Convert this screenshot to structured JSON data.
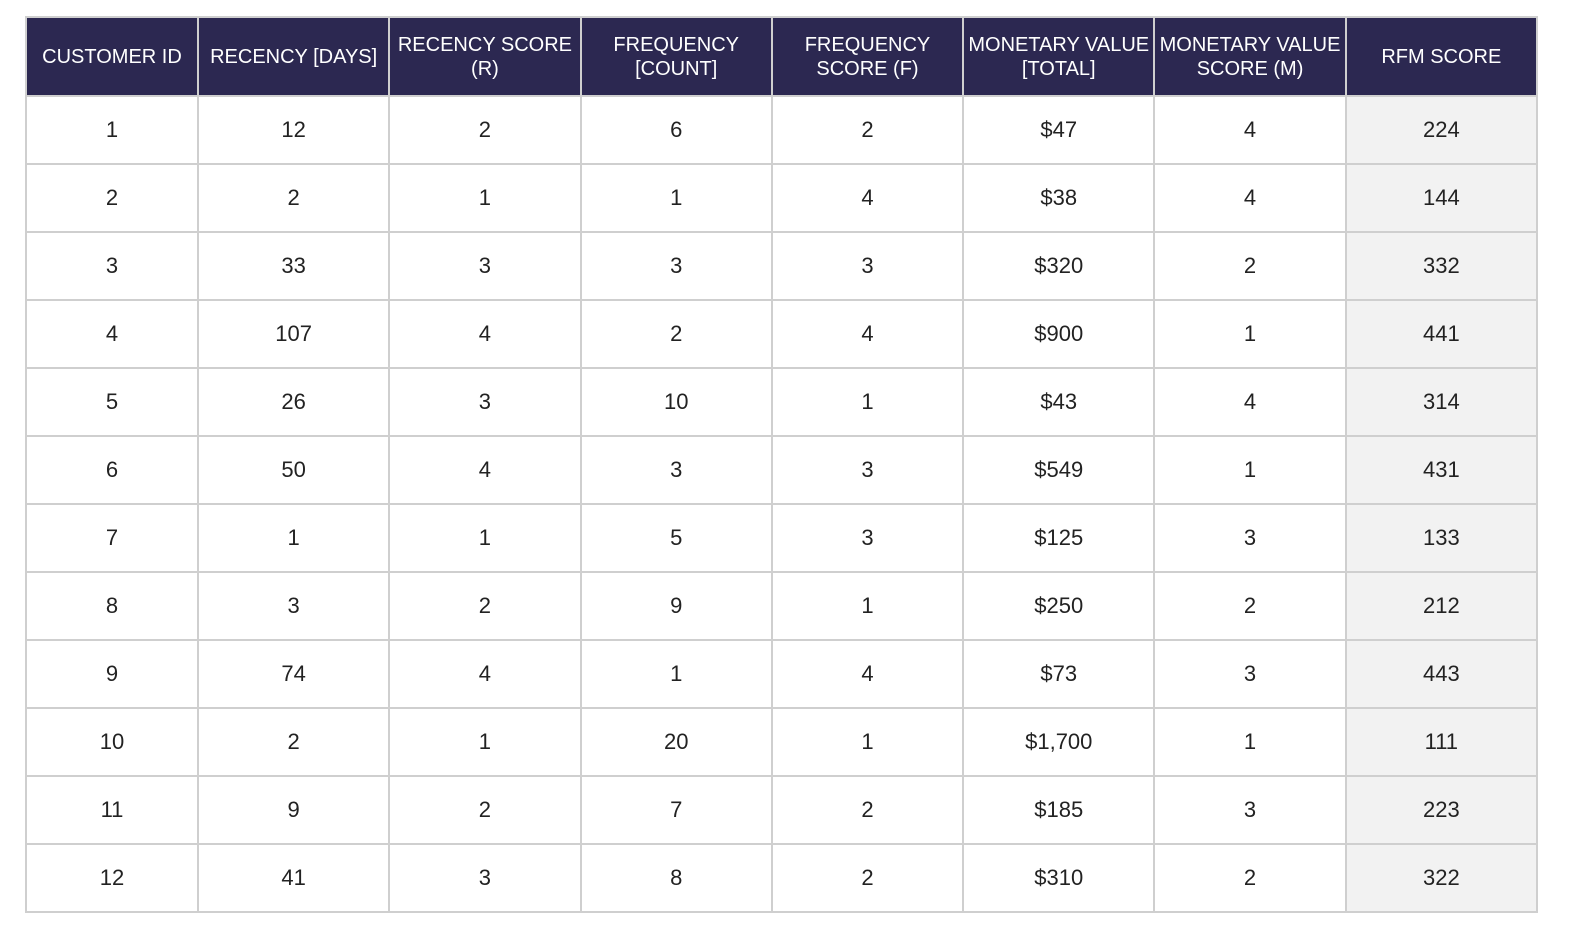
{
  "table": {
    "columns": [
      "CUSTOMER ID",
      "RECENCY [DAYS]",
      "RECENCY SCORE (R)",
      "FREQUENCY [COUNT]",
      "FREQUENCY SCORE (F)",
      "MONETARY VALUE [TOTAL]",
      "MONETARY VALUE SCORE (M)",
      "RFM SCORE"
    ],
    "rows": [
      [
        1,
        12,
        2,
        6,
        2,
        "$47",
        4,
        224
      ],
      [
        2,
        2,
        1,
        1,
        4,
        "$38",
        4,
        144
      ],
      [
        3,
        33,
        3,
        3,
        3,
        "$320",
        2,
        332
      ],
      [
        4,
        107,
        4,
        2,
        4,
        "$900",
        1,
        441
      ],
      [
        5,
        26,
        3,
        10,
        1,
        "$43",
        4,
        314
      ],
      [
        6,
        50,
        4,
        3,
        3,
        "$549",
        1,
        431
      ],
      [
        7,
        1,
        1,
        5,
        3,
        "$125",
        3,
        133
      ],
      [
        8,
        3,
        2,
        9,
        1,
        "$250",
        2,
        212
      ],
      [
        9,
        74,
        4,
        1,
        4,
        "$73",
        3,
        443
      ],
      [
        10,
        2,
        1,
        20,
        1,
        "$1,700",
        1,
        111
      ],
      [
        11,
        9,
        2,
        7,
        2,
        "$185",
        3,
        223
      ],
      [
        12,
        41,
        3,
        8,
        2,
        "$310",
        2,
        322
      ]
    ]
  }
}
